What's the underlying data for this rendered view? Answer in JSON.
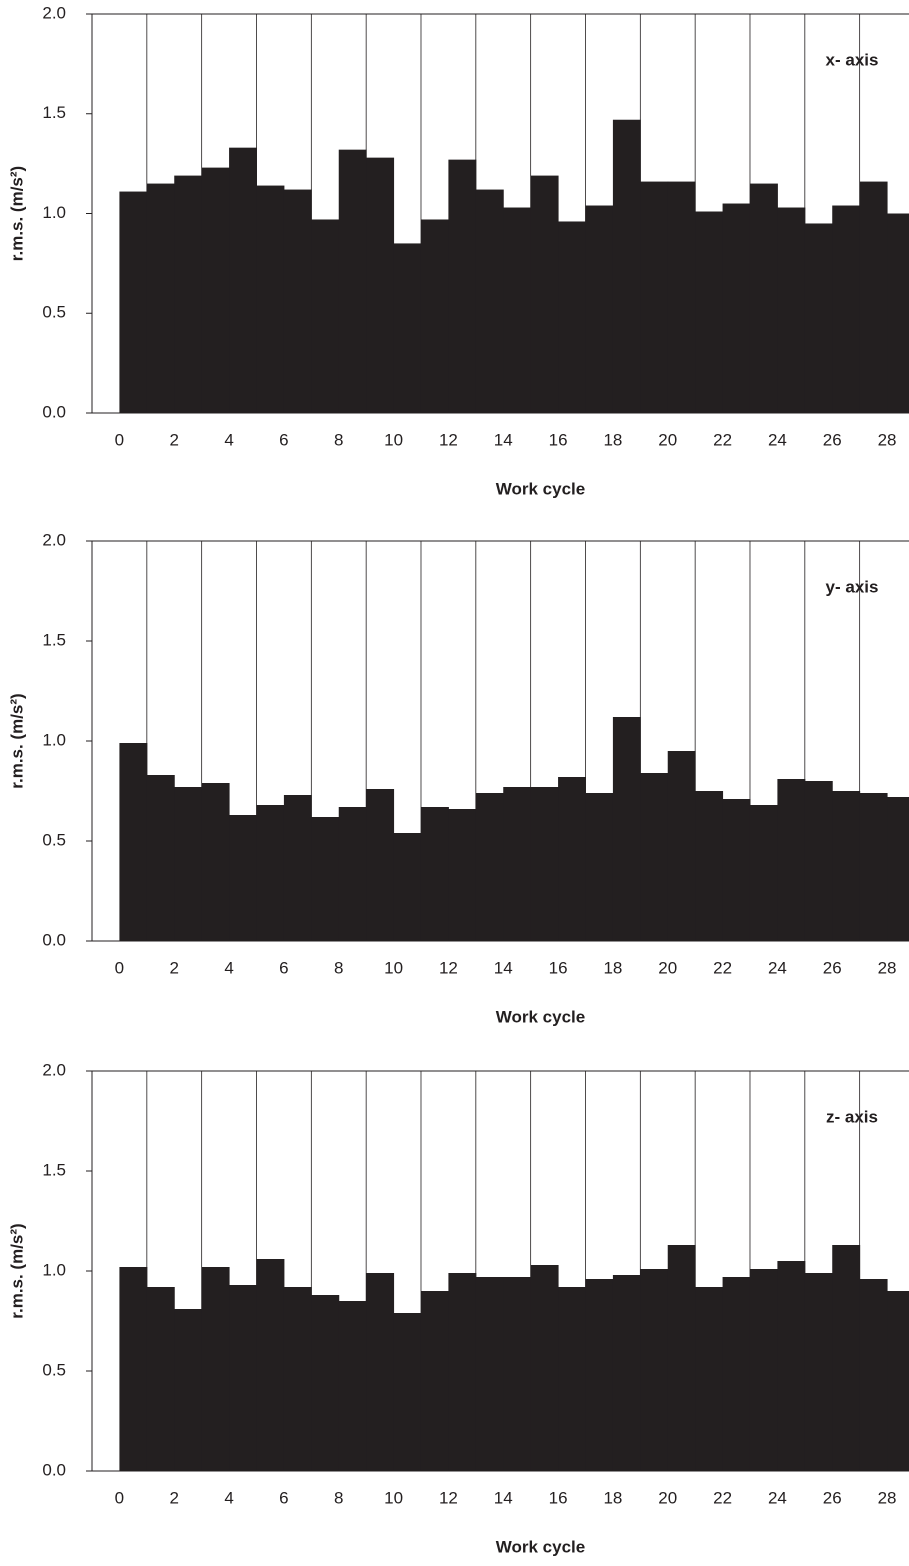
{
  "chart_data": [
    {
      "type": "histogram",
      "annotation": "x- axis",
      "xlabel": "Work cycle",
      "ylabel": "r.m.s. (m/s²)",
      "bins": [
        0,
        1,
        2,
        3,
        4,
        5,
        6,
        7,
        8,
        9,
        10,
        11,
        12,
        13,
        14,
        15,
        16,
        17,
        18,
        19,
        20,
        21,
        22,
        23,
        24,
        25,
        26,
        27,
        28,
        29
      ],
      "values": [
        1.11,
        1.15,
        1.19,
        1.23,
        1.33,
        1.14,
        1.12,
        0.97,
        1.32,
        1.28,
        0.85,
        0.97,
        1.27,
        1.12,
        1.03,
        1.19,
        0.96,
        1.04,
        1.47,
        1.16,
        1.16,
        1.01,
        1.05,
        1.15,
        1.03,
        0.95,
        1.04,
        1.16,
        1.0
      ],
      "color": "#231f20",
      "grid": true,
      "xlim": [
        -1,
        28.8
      ],
      "xticks": [
        0,
        2,
        4,
        6,
        8,
        10,
        12,
        14,
        16,
        18,
        20,
        22,
        24,
        26,
        28
      ],
      "ylim": [
        0,
        2
      ],
      "yticks": [
        {
          "value": 0,
          "label": "0.0"
        },
        {
          "value": 0.5,
          "label": "0.5"
        },
        {
          "value": 1,
          "label": "1.0"
        },
        {
          "value": 1.5,
          "label": "1.5"
        },
        {
          "value": 2,
          "label": "2.0"
        }
      ]
    },
    {
      "type": "histogram",
      "annotation": "y- axis",
      "xlabel": "Work cycle",
      "ylabel": "r.m.s. (m/s²)",
      "bins": [
        0,
        1,
        2,
        3,
        4,
        5,
        6,
        7,
        8,
        9,
        10,
        11,
        12,
        13,
        14,
        15,
        16,
        17,
        18,
        19,
        20,
        21,
        22,
        23,
        24,
        25,
        26,
        27,
        28,
        29
      ],
      "values": [
        0.99,
        0.83,
        0.77,
        0.79,
        0.63,
        0.68,
        0.73,
        0.62,
        0.67,
        0.76,
        0.54,
        0.67,
        0.66,
        0.74,
        0.77,
        0.77,
        0.82,
        0.74,
        1.12,
        0.84,
        0.95,
        0.75,
        0.71,
        0.68,
        0.81,
        0.8,
        0.75,
        0.74,
        0.72
      ],
      "color": "#231f20",
      "grid": true,
      "xlim": [
        -1,
        28.8
      ],
      "xticks": [
        0,
        2,
        4,
        6,
        8,
        10,
        12,
        14,
        16,
        18,
        20,
        22,
        24,
        26,
        28
      ],
      "ylim": [
        0,
        2
      ],
      "yticks": [
        {
          "value": 0,
          "label": "0.0"
        },
        {
          "value": 0.5,
          "label": "0.5"
        },
        {
          "value": 1,
          "label": "1.0"
        },
        {
          "value": 1.5,
          "label": "1.5"
        },
        {
          "value": 2,
          "label": "2.0"
        }
      ]
    },
    {
      "type": "histogram",
      "annotation": "z- axis",
      "xlabel": "Work cycle",
      "ylabel": "r.m.s. (m/s²)",
      "bins": [
        0,
        1,
        2,
        3,
        4,
        5,
        6,
        7,
        8,
        9,
        10,
        11,
        12,
        13,
        14,
        15,
        16,
        17,
        18,
        19,
        20,
        21,
        22,
        23,
        24,
        25,
        26,
        27,
        28,
        29
      ],
      "values": [
        1.02,
        0.92,
        0.81,
        1.02,
        0.93,
        1.06,
        0.92,
        0.88,
        0.85,
        0.99,
        0.79,
        0.9,
        0.99,
        0.97,
        0.97,
        1.03,
        0.92,
        0.96,
        0.98,
        1.01,
        1.13,
        0.92,
        0.97,
        1.01,
        1.05,
        0.99,
        1.13,
        0.96,
        0.9
      ],
      "color": "#231f20",
      "grid": true,
      "xlim": [
        -1,
        28.8
      ],
      "xticks": [
        0,
        2,
        4,
        6,
        8,
        10,
        12,
        14,
        16,
        18,
        20,
        22,
        24,
        26,
        28
      ],
      "ylim": [
        0,
        2
      ],
      "yticks": [
        {
          "value": 0,
          "label": "0.0"
        },
        {
          "value": 0.5,
          "label": "0.5"
        },
        {
          "value": 1,
          "label": "1.0"
        },
        {
          "value": 1.5,
          "label": "1.5"
        },
        {
          "value": 2,
          "label": "2.0"
        }
      ]
    }
  ]
}
